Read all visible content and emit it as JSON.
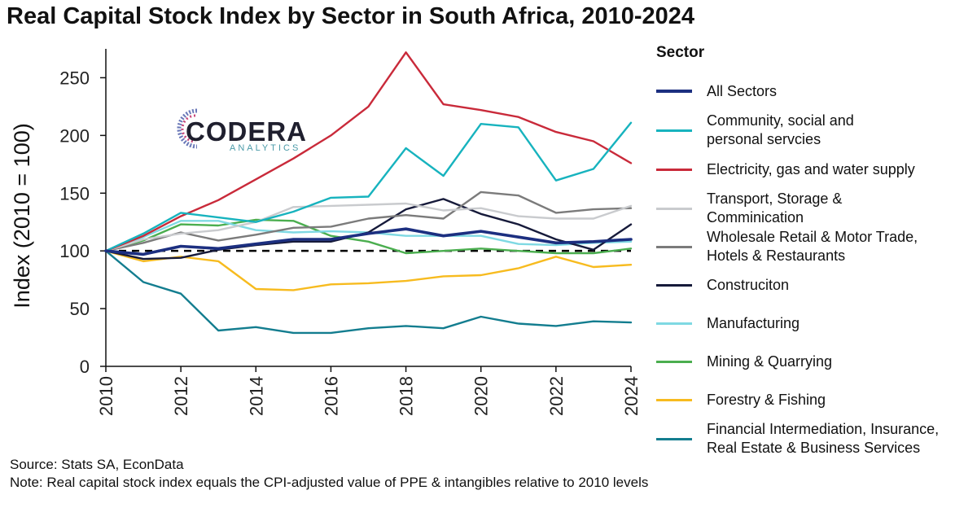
{
  "title": "Real Capital Stock Index by Sector in South Africa, 2010-2024",
  "logo": {
    "word": "CODERA",
    "sub": "ANALYTICS"
  },
  "source": "Source: Stats SA, EconData",
  "note": "Note: Real capital stock index equals the CPI-adjusted value of PPE & intangibles relative to 2010 levels",
  "colors": {
    "All Sectors": "#1c2f80",
    "Community, social and personal servcies": "#17b3be",
    "Electricity, gas and water supply": "#c92a3a",
    "Transport, Storage & Comminication": "#c9cbce",
    "Wholesale Retail & Motor Trade, Hotels & Restaurants": "#7b7b7b",
    "Construciton": "#161a3a",
    "Manufacturing": "#7fd9e3",
    "Mining & Quarrying": "#4bae4f",
    "Forestry & Fishing": "#f7bb1f",
    "Financial Intermediation, Insurance, Real Estate & Business Services": "#137d8f"
  },
  "chart_data": {
    "type": "line",
    "title": "Real Capital Stock Index by Sector in South Africa, 2010-2024",
    "xlabel": "",
    "ylabel": "Index (2010 = 100)",
    "x": [
      2010,
      2011,
      2012,
      2013,
      2014,
      2015,
      2016,
      2017,
      2018,
      2019,
      2020,
      2021,
      2022,
      2023,
      2024
    ],
    "xticks": [
      "2010",
      "2012",
      "2014",
      "2016",
      "2018",
      "2020",
      "2022",
      "2024"
    ],
    "xtick_values": [
      2010,
      2012,
      2014,
      2016,
      2018,
      2020,
      2022,
      2024
    ],
    "yticks": [
      0,
      50,
      100,
      150,
      200,
      250
    ],
    "ylim": [
      0,
      275
    ],
    "xlim": [
      2010,
      2024
    ],
    "reference_line": 100,
    "legend_title": "Sector",
    "legend_placement": "right",
    "grid": false,
    "series": [
      {
        "name": "All Sectors",
        "values": [
          100,
          97,
          104,
          102,
          106,
          110,
          110,
          115,
          119,
          113,
          117,
          112,
          107,
          108,
          110
        ]
      },
      {
        "name": "Community, social and\npersonal servcies",
        "values": [
          100,
          115,
          133,
          129,
          125,
          134,
          146,
          147,
          189,
          165,
          210,
          207,
          161,
          171,
          211
        ]
      },
      {
        "name": "Electricity, gas and water supply",
        "values": [
          100,
          113,
          130,
          144,
          162,
          180,
          200,
          225,
          272,
          227,
          222,
          216,
          203,
          195,
          176
        ]
      },
      {
        "name": "Transport, Storage &\nComminication",
        "values": [
          100,
          110,
          115,
          118,
          125,
          138,
          139,
          140,
          141,
          135,
          137,
          130,
          128,
          128,
          139
        ]
      },
      {
        "name": "Wholesale Retail & Motor Trade,\nHotels & Restaurants",
        "values": [
          100,
          107,
          116,
          109,
          114,
          120,
          121,
          128,
          131,
          128,
          151,
          148,
          133,
          136,
          137
        ]
      },
      {
        "name": "Construciton",
        "values": [
          100,
          93,
          94,
          101,
          105,
          108,
          108,
          116,
          136,
          145,
          132,
          123,
          110,
          101,
          123
        ]
      },
      {
        "name": "Manufacturing",
        "values": [
          100,
          112,
          126,
          126,
          118,
          116,
          117,
          116,
          113,
          113,
          113,
          106,
          105,
          107,
          108
        ]
      },
      {
        "name": "Mining & Quarrying",
        "values": [
          100,
          109,
          123,
          122,
          127,
          126,
          113,
          108,
          98,
          100,
          102,
          100,
          98,
          98,
          102
        ]
      },
      {
        "name": "Forestry & Fishing",
        "values": [
          100,
          91,
          95,
          91,
          67,
          66,
          71,
          72,
          74,
          78,
          79,
          85,
          95,
          86,
          88
        ]
      },
      {
        "name": "Financial Intermediation, Insurance,\nReal Estate & Business Services",
        "values": [
          100,
          73,
          63,
          31,
          34,
          29,
          29,
          33,
          35,
          33,
          43,
          37,
          35,
          39,
          38
        ]
      }
    ]
  }
}
